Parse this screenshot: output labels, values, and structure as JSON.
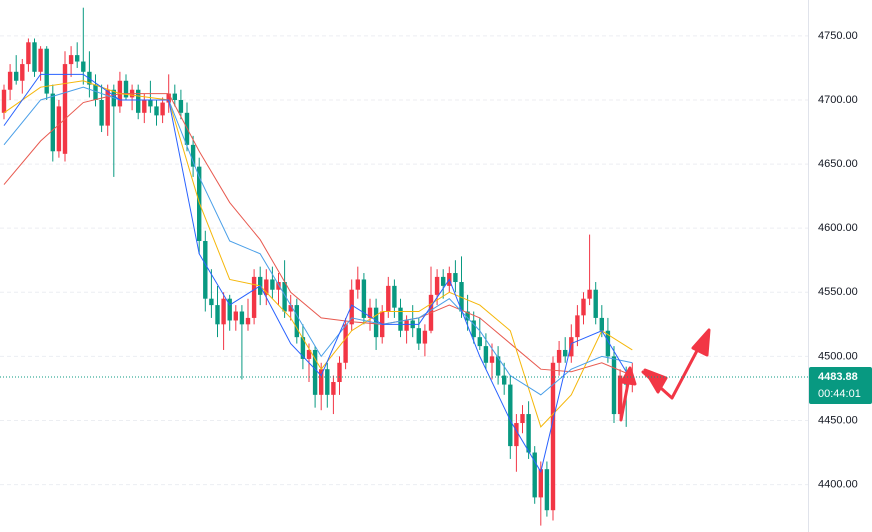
{
  "chart_data": {
    "type": "candlestick",
    "open": [
      4690,
      4708,
      4722,
      4715,
      4728,
      4745,
      4722,
      4740,
      4705,
      4660,
      4658,
      4728,
      4735,
      4730,
      4722,
      4712,
      4700,
      4680,
      4708,
      4695,
      4715,
      4702,
      4708,
      4690,
      4700,
      4695,
      4688,
      4698,
      4705,
      4700,
      4690,
      4665,
      4648,
      4590,
      4545,
      4540,
      4525,
      4545,
      4528,
      4535,
      4525,
      4530,
      4562,
      4548,
      4560,
      4552,
      4558,
      4535,
      4540,
      4515,
      4498,
      4505,
      4470,
      4490,
      4470,
      4480,
      4495,
      4525,
      4552,
      4560,
      4530,
      4538,
      4515,
      4535,
      4555,
      4538,
      4520,
      4528,
      4522,
      4510,
      4520,
      4548,
      4562,
      4555,
      4565,
      4558,
      4535,
      4528,
      4515,
      4508,
      4495,
      4500,
      4485,
      4478,
      4430,
      4448,
      4455,
      4425,
      4390,
      4412,
      4380,
      4495,
      4505,
      4500,
      4515,
      4532,
      4545,
      4552,
      4530,
      4520,
      4500,
      4455,
      4485,
      4478
    ],
    "high": [
      4712,
      4728,
      4735,
      4732,
      4748,
      4748,
      4742,
      4742,
      4712,
      4700,
      4738,
      4742,
      4745,
      4772,
      4738,
      4720,
      4712,
      4712,
      4712,
      4722,
      4720,
      4712,
      4712,
      4705,
      4715,
      4700,
      4702,
      4720,
      4712,
      4708,
      4698,
      4672,
      4655,
      4598,
      4568,
      4555,
      4550,
      4548,
      4540,
      4540,
      4545,
      4568,
      4570,
      4568,
      4570,
      4565,
      4575,
      4548,
      4545,
      4525,
      4510,
      4508,
      4495,
      4495,
      4485,
      4500,
      4530,
      4560,
      4570,
      4565,
      4545,
      4545,
      4540,
      4562,
      4560,
      4545,
      4532,
      4540,
      4530,
      4525,
      4570,
      4568,
      4568,
      4570,
      4575,
      4578,
      4548,
      4535,
      4530,
      4518,
      4510,
      4508,
      4495,
      4485,
      4455,
      4462,
      4465,
      4430,
      4418,
      4418,
      4500,
      4512,
      4515,
      4525,
      4540,
      4550,
      4595,
      4558,
      4540,
      4530,
      4508,
      4490,
      4492,
      4495
    ],
    "low": [
      4685,
      4700,
      4712,
      4705,
      4722,
      4718,
      4715,
      4700,
      4652,
      4655,
      4652,
      4718,
      4725,
      4712,
      4702,
      4695,
      4675,
      4672,
      4640,
      4690,
      4700,
      4692,
      4685,
      4682,
      4690,
      4680,
      4682,
      4690,
      4695,
      4685,
      4660,
      4640,
      4580,
      4535,
      4530,
      4515,
      4505,
      4520,
      4520,
      4482,
      4520,
      4525,
      4540,
      4540,
      4545,
      4540,
      4530,
      4528,
      4510,
      4490,
      4480,
      4460,
      4458,
      4460,
      4455,
      4470,
      4490,
      4520,
      4545,
      4525,
      4520,
      4505,
      4510,
      4530,
      4530,
      4515,
      4510,
      4515,
      4505,
      4500,
      4518,
      4540,
      4545,
      4550,
      4550,
      4530,
      4520,
      4510,
      4505,
      4490,
      4482,
      4478,
      4470,
      4420,
      4410,
      4440,
      4420,
      4385,
      4368,
      4375,
      4372,
      4485,
      4495,
      4495,
      4508,
      4525,
      4540,
      4525,
      4515,
      4495,
      4448,
      4450,
      4445,
      4472
    ],
    "close": [
      4708,
      4722,
      4715,
      4728,
      4745,
      4722,
      4740,
      4705,
      4660,
      4695,
      4728,
      4735,
      4730,
      4722,
      4712,
      4700,
      4680,
      4708,
      4695,
      4715,
      4702,
      4708,
      4690,
      4700,
      4695,
      4688,
      4698,
      4705,
      4700,
      4690,
      4665,
      4648,
      4590,
      4545,
      4540,
      4525,
      4545,
      4528,
      4535,
      4525,
      4530,
      4562,
      4548,
      4560,
      4552,
      4558,
      4535,
      4540,
      4515,
      4498,
      4505,
      4470,
      4490,
      4470,
      4480,
      4495,
      4525,
      4552,
      4560,
      4530,
      4538,
      4515,
      4535,
      4555,
      4538,
      4520,
      4528,
      4522,
      4510,
      4520,
      4548,
      4562,
      4555,
      4565,
      4558,
      4535,
      4528,
      4515,
      4508,
      4495,
      4500,
      4485,
      4478,
      4430,
      4448,
      4455,
      4425,
      4390,
      4412,
      4380,
      4495,
      4505,
      4500,
      4515,
      4532,
      4545,
      4552,
      4530,
      4520,
      4500,
      4455,
      4485,
      4478,
      4484
    ],
    "up_color": "#f23645",
    "down_color": "#089981",
    "series": [
      {
        "color": "#e85a50",
        "x": [
          0,
          6,
          13,
          19,
          27,
          32,
          37,
          42,
          47,
          52,
          57,
          62,
          68,
          73,
          78,
          83,
          88,
          93,
          98,
          103
        ],
        "values": [
          4634,
          4668,
          4698,
          4705,
          4705,
          4660,
          4620,
          4591,
          4550,
          4530,
          4527,
          4525,
          4530,
          4540,
          4530,
          4510,
          4490,
          4488,
          4495,
          4485
        ]
      },
      {
        "color": "#f5b70a",
        "x": [
          0,
          6,
          13,
          19,
          27,
          32,
          37,
          42,
          47,
          52,
          57,
          62,
          68,
          73,
          78,
          83,
          88,
          93,
          98,
          103
        ],
        "values": [
          4690,
          4710,
          4715,
          4705,
          4700,
          4620,
          4560,
          4555,
          4530,
          4490,
          4520,
          4535,
          4535,
          4550,
          4540,
          4520,
          4445,
          4470,
          4520,
          4505
        ]
      },
      {
        "color": "#4a9fe8",
        "x": [
          0,
          6,
          13,
          19,
          27,
          32,
          37,
          42,
          47,
          52,
          57,
          62,
          68,
          73,
          78,
          83,
          88,
          93,
          98,
          103
        ],
        "values": [
          4665,
          4700,
          4710,
          4700,
          4700,
          4640,
          4590,
          4580,
          4540,
          4500,
          4530,
          4525,
          4530,
          4545,
          4520,
          4485,
          4470,
          4490,
          4500,
          4495
        ]
      },
      {
        "color": "#2962ff",
        "x": [
          0,
          6,
          13,
          19,
          27,
          32,
          37,
          42,
          47,
          52,
          57,
          62,
          68,
          73,
          78,
          83,
          88,
          93,
          98,
          103
        ],
        "values": [
          4680,
          4720,
          4720,
          4700,
          4700,
          4580,
          4540,
          4555,
          4510,
          4485,
          4540,
          4525,
          4525,
          4560,
          4500,
          4450,
          4410,
          4510,
          4520,
          4480
        ]
      }
    ],
    "ylim": [
      4363,
      4778
    ],
    "yticks": [
      {
        "value": 4400,
        "label": "4400.00"
      },
      {
        "value": 4450,
        "label": "4450.00"
      },
      {
        "value": 4500,
        "label": "4500.00"
      },
      {
        "value": 4550,
        "label": "4550.00"
      },
      {
        "value": 4600,
        "label": "4600.00"
      },
      {
        "value": 4650,
        "label": "4650.00"
      },
      {
        "value": 4700,
        "label": "4700.00"
      },
      {
        "value": 4750,
        "label": "4750.00"
      }
    ],
    "grid": true,
    "last_price": 4483.88,
    "countdown": "00:44:01"
  }
}
